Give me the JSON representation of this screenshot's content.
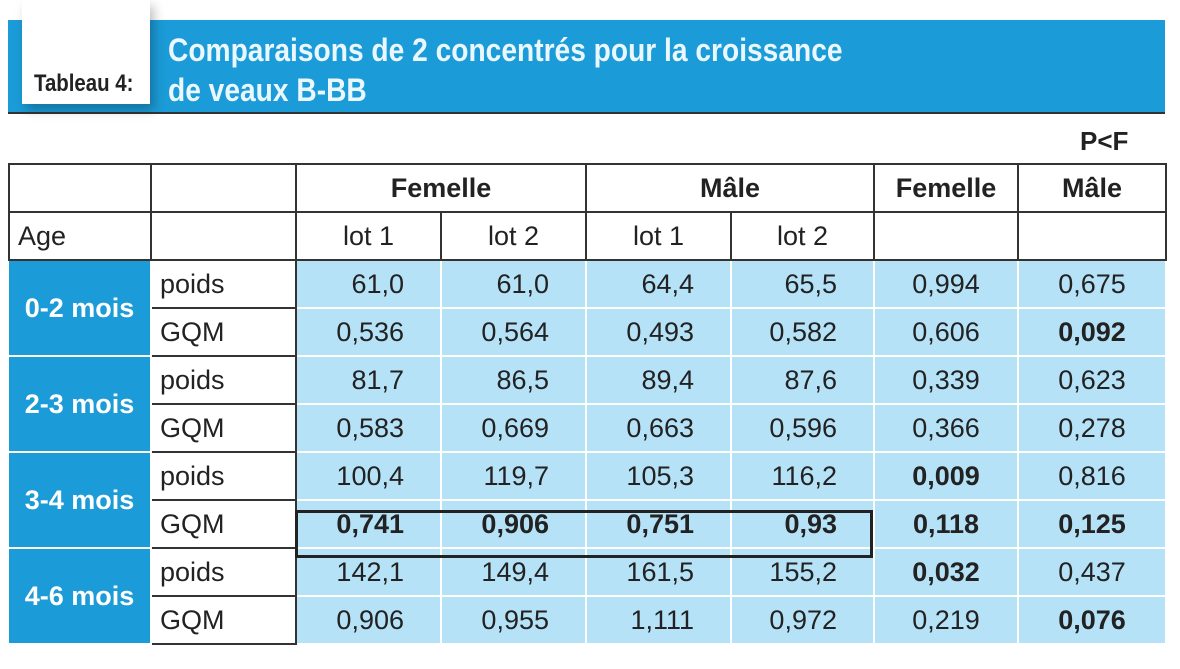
{
  "header": {
    "tab_label": "Tableau 4:",
    "title_line1": "Comparaisons de 2 concentrés pour la croissance",
    "title_line2": "de veaux B-BB",
    "note": "P<F"
  },
  "table": {
    "group_headers": [
      "Femelle",
      "Mâle",
      "Femelle",
      "Mâle"
    ],
    "sub_headers": [
      "Age",
      "lot 1",
      "lot 2",
      "lot 1",
      "lot 2"
    ],
    "groups": [
      {
        "age": "0-2 mois",
        "rows": [
          {
            "label": "poids",
            "values": [
              "61,0",
              "61,0",
              "64,4",
              "65,5"
            ],
            "p": [
              "0,994",
              "0,675"
            ],
            "bold_p": [
              false,
              false
            ],
            "bold_v": false
          },
          {
            "label": "GQM",
            "values": [
              "0,536",
              "0,564",
              "0,493",
              "0,582"
            ],
            "p": [
              "0,606",
              "0,092"
            ],
            "bold_p": [
              false,
              true
            ],
            "bold_v": false
          }
        ]
      },
      {
        "age": "2-3 mois",
        "rows": [
          {
            "label": "poids",
            "values": [
              "81,7",
              "86,5",
              "89,4",
              "87,6"
            ],
            "p": [
              "0,339",
              "0,623"
            ],
            "bold_p": [
              false,
              false
            ],
            "bold_v": false
          },
          {
            "label": "GQM",
            "values": [
              "0,583",
              "0,669",
              "0,663",
              "0,596"
            ],
            "p": [
              "0,366",
              "0,278"
            ],
            "bold_p": [
              false,
              false
            ],
            "bold_v": false
          }
        ]
      },
      {
        "age": "3-4 mois",
        "rows": [
          {
            "label": "poids",
            "values": [
              "100,4",
              "119,7",
              "105,3",
              "116,2"
            ],
            "p": [
              "0,009",
              "0,816"
            ],
            "bold_p": [
              true,
              false
            ],
            "bold_v": false
          },
          {
            "label": "GQM",
            "values": [
              "0,741",
              "0,906",
              "0,751",
              "0,93"
            ],
            "p": [
              "0,118",
              "0,125"
            ],
            "bold_p": [
              true,
              true
            ],
            "bold_v": true
          }
        ]
      },
      {
        "age": "4-6 mois",
        "rows": [
          {
            "label": "poids",
            "values": [
              "142,1",
              "149,4",
              "161,5",
              "155,2"
            ],
            "p": [
              "0,032",
              "0,437"
            ],
            "bold_p": [
              true,
              false
            ],
            "bold_v": false
          },
          {
            "label": "GQM",
            "values": [
              "0,906",
              "0,955",
              "1,111",
              "0,972"
            ],
            "p": [
              "0,219",
              "0,076"
            ],
            "bold_p": [
              false,
              true
            ],
            "bold_v": false
          }
        ]
      }
    ]
  },
  "colors": {
    "header_blue": "#1b9bd7",
    "cell_blue": "#b5e2f7"
  }
}
